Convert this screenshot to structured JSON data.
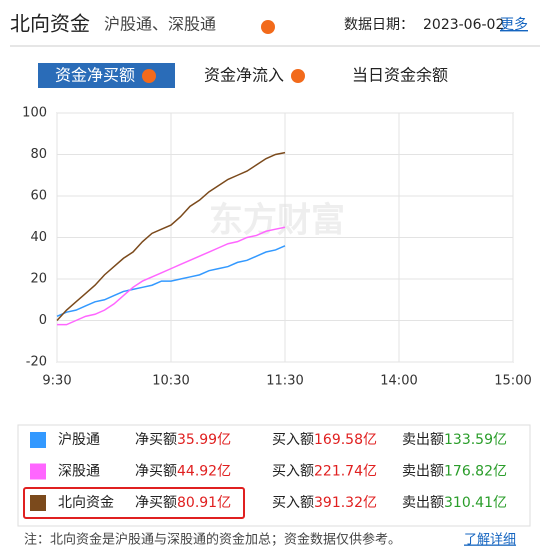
{
  "header": {
    "title": "北向资金",
    "subtitle": "沪股通、深股通",
    "date_label": "数据日期：",
    "date": "2023-06-02",
    "more": "更多"
  },
  "tabs": [
    "资金净买额",
    "资金净流入",
    "当日资金余额"
  ],
  "chart_data": {
    "type": "line",
    "watermark": "东方财富",
    "x": [
      0,
      5,
      10,
      15,
      20,
      25,
      30,
      35,
      40,
      45,
      50,
      55,
      60,
      65,
      70,
      75,
      80,
      85,
      90,
      95,
      100,
      105,
      110,
      115,
      120
    ],
    "series": [
      {
        "name": "沪股通",
        "color": "#3399ff",
        "values": [
          2,
          4,
          5,
          7,
          9,
          10,
          12,
          14,
          15,
          16,
          17,
          19,
          19,
          20,
          21,
          22,
          24,
          25,
          26,
          28,
          29,
          31,
          33,
          34,
          35.99
        ]
      },
      {
        "name": "深股通",
        "color": "#ff66ff",
        "values": [
          -2,
          -2,
          0,
          2,
          3,
          5,
          8,
          12,
          16,
          19,
          21,
          23,
          25,
          27,
          29,
          31,
          33,
          35,
          37,
          38,
          40,
          41,
          43,
          44,
          44.92
        ]
      },
      {
        "name": "北向资金",
        "color": "#7b4a1c",
        "values": [
          0,
          5,
          9,
          13,
          17,
          22,
          26,
          30,
          33,
          38,
          42,
          44,
          46,
          50,
          55,
          58,
          62,
          65,
          68,
          70,
          72,
          75,
          78,
          80,
          80.91
        ]
      }
    ],
    "xlim": [
      0,
      240
    ],
    "xticks": [
      {
        "value": 0,
        "label": "9:30"
      },
      {
        "value": 60,
        "label": "10:30"
      },
      {
        "value": 120,
        "label": "11:30"
      },
      {
        "value": 180,
        "label": "14:00"
      },
      {
        "value": 240,
        "label": "15:00"
      }
    ],
    "ylim": [
      -20,
      100
    ],
    "yticks": [
      -20,
      0,
      20,
      40,
      60,
      80,
      100
    ],
    "grid": true
  },
  "table": {
    "highlight_row": 2,
    "rows": [
      {
        "net_label": "净买额",
        "net": "35.99亿",
        "buy_label": "买入额",
        "buy": "169.58亿",
        "sell_label": "卖出额",
        "sell": "133.59亿"
      },
      {
        "net_label": "净买额",
        "net": "44.92亿",
        "buy_label": "买入额",
        "buy": "221.74亿",
        "sell_label": "卖出额",
        "sell": "176.82亿"
      },
      {
        "net_label": "净买额",
        "net": "80.91亿",
        "buy_label": "买入额",
        "buy": "391.32亿",
        "sell_label": "卖出额",
        "sell": "310.41亿"
      }
    ]
  },
  "footer": {
    "note": "注：北向资金是沪股通与深股通的资金加总；资金数据仅供参考。",
    "link": "了解详细"
  }
}
